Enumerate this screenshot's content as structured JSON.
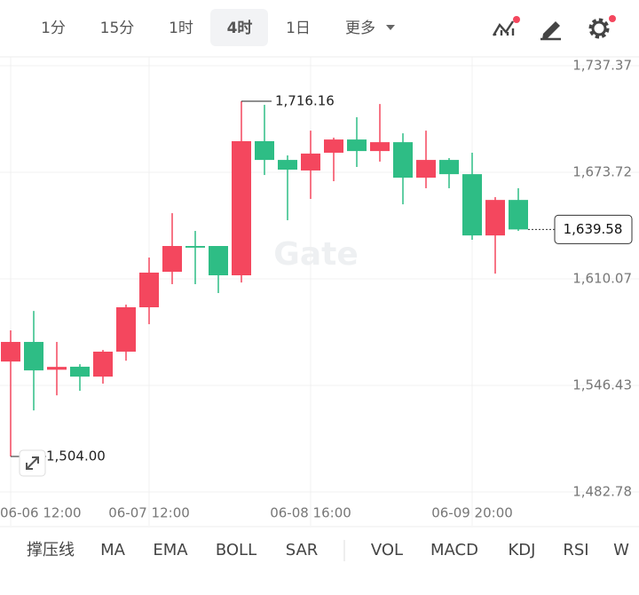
{
  "toolbar": {
    "tabs": [
      "1分",
      "15分",
      "1时",
      "4时",
      "1日",
      "更多"
    ],
    "active_tab": "4时"
  },
  "chart_data": {
    "type": "candlestick",
    "watermark": "Gate",
    "categories": [
      "06-06 12:00",
      null,
      null,
      null,
      null,
      null,
      "06-07 12:00",
      null,
      null,
      null,
      null,
      null,
      null,
      "06-08 16:00",
      null,
      null,
      null,
      null,
      null,
      null,
      "06-09 20:00",
      null,
      null
    ],
    "open": [
      1560.7,
      1572.4,
      1555.8,
      1557.6,
      1551.7,
      1566.6,
      1593.1,
      1614.3,
      1629.7,
      1629.7,
      1612.2,
      1692.3,
      1681.1,
      1674.8,
      1685.4,
      1693.3,
      1686.4,
      1691.7,
      1670.5,
      1681.1,
      1672.6,
      1636.0,
      1657.2
    ],
    "high": [
      1579.3,
      1590.9,
      1572.4,
      1559.1,
      1567.6,
      1594.7,
      1622.8,
      1649.3,
      1638.7,
      1629.7,
      1716.16,
      1714.0,
      1683.8,
      1698.6,
      1694.4,
      1706.6,
      1714.5,
      1697.0,
      1698.6,
      1682.2,
      1685.4,
      1658.9,
      1664.2
    ],
    "low": [
      1504.0,
      1531.5,
      1540.5,
      1543.2,
      1547.5,
      1561.2,
      1583.0,
      1606.9,
      1606.9,
      1601.6,
      1607.9,
      1672.1,
      1645.1,
      1657.8,
      1668.4,
      1676.9,
      1680.1,
      1654.6,
      1664.2,
      1664.2,
      1633.4,
      1613.2,
      1638.7
    ],
    "close": [
      1572.4,
      1555.4,
      1557.5,
      1551.7,
      1566.6,
      1593.1,
      1613.8,
      1629.7,
      1628.7,
      1612.2,
      1692.3,
      1681.1,
      1675.3,
      1684.9,
      1693.3,
      1686.4,
      1691.7,
      1670.5,
      1681.1,
      1672.6,
      1636.0,
      1657.2,
      1639.58
    ],
    "up_color": "#f4475e",
    "down_color": "#2ebd85",
    "ylim": [
      1482.78,
      1737.37
    ],
    "yticks": [
      {
        "value": 1482.78,
        "label": "1,482.78"
      },
      {
        "value": 1546.43,
        "label": "1,546.43"
      },
      {
        "value": 1610.07,
        "label": "1,610.07"
      },
      {
        "value": 1673.72,
        "label": "1,673.72"
      },
      {
        "value": 1737.37,
        "label": "1,737.37"
      }
    ],
    "grid": true,
    "max_label": {
      "value": 1716.16,
      "label": "1,716.16"
    },
    "min_label": {
      "value": 1504.0,
      "label": "1,504.00"
    },
    "last_price": {
      "value": 1639.58,
      "label": "1,639.58"
    }
  },
  "indicators": [
    "撑压线",
    "MA",
    "EMA",
    "BOLL",
    "SAR",
    "VOL",
    "MACD",
    "KDJ",
    "RSI",
    "W"
  ]
}
